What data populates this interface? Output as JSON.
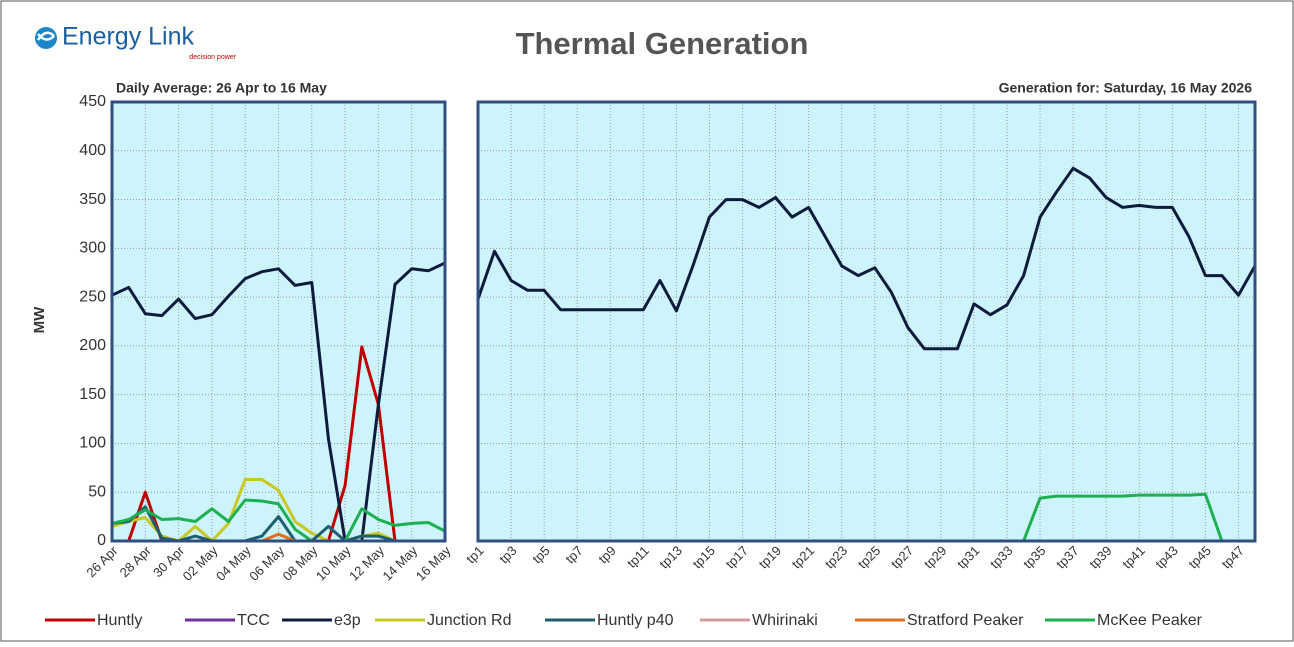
{
  "header": {
    "logo": "Energy Link",
    "tagline": "decision power",
    "title": "Thermal Generation"
  },
  "chart_data": [
    {
      "type": "line",
      "subtitle": "Daily Average: 26 Apr to 16 May",
      "y_label": "MW",
      "categories": [
        "26 Apr",
        null,
        "28 Apr",
        null,
        "30 Apr",
        null,
        "02 May",
        null,
        "04 May",
        null,
        "06 May",
        null,
        "08 May",
        null,
        "10 May",
        null,
        "12 May",
        null,
        "14 May",
        null,
        "16 May"
      ],
      "ylim": [
        0,
        450
      ],
      "yticks": [
        0,
        50,
        100,
        150,
        200,
        250,
        300,
        350,
        400,
        450
      ],
      "grid": true,
      "series": [
        {
          "name": "Huntly",
          "color": "#c00000",
          "values": [
            0,
            0,
            50,
            0,
            0,
            0,
            0,
            0,
            0,
            0,
            0,
            0,
            0,
            0,
            57,
            199,
            140,
            0,
            null,
            null,
            null
          ]
        },
        {
          "name": "TCC",
          "color": "#7030a0",
          "values": [
            0,
            0,
            0,
            0,
            0,
            0,
            0,
            0,
            0,
            0,
            0,
            0,
            0,
            0,
            0,
            0,
            0,
            0,
            0,
            0,
            0
          ]
        },
        {
          "name": "e3p",
          "color": "#0e1b3d",
          "values": [
            252,
            260,
            233,
            231,
            248,
            228,
            232,
            251,
            269,
            276,
            279,
            262,
            265,
            105,
            0,
            0,
            140,
            263,
            279,
            277,
            285
          ]
        },
        {
          "name": "Junction Rd",
          "color": "#c8c820",
          "values": [
            15,
            20,
            24,
            5,
            0,
            15,
            0,
            18,
            63,
            63,
            52,
            20,
            8,
            0,
            0,
            5,
            8,
            0,
            0,
            0,
            0
          ]
        },
        {
          "name": "Huntly p40",
          "color": "#1f5f6f",
          "values": [
            18,
            20,
            35,
            3,
            0,
            5,
            0,
            0,
            0,
            5,
            25,
            0,
            0,
            15,
            0,
            5,
            5,
            0,
            0,
            0,
            0
          ]
        },
        {
          "name": "Whirinaki",
          "color": "#d49a9a",
          "values": [
            0,
            0,
            0,
            0,
            0,
            0,
            0,
            0,
            0,
            0,
            0,
            0,
            0,
            0,
            0,
            0,
            0,
            0,
            0,
            0,
            0
          ]
        },
        {
          "name": "Stratford Peaker",
          "color": "#e07020",
          "values": [
            0,
            0,
            0,
            0,
            0,
            0,
            0,
            0,
            0,
            0,
            7,
            0,
            0,
            0,
            0,
            0,
            0,
            0,
            0,
            0,
            0
          ]
        },
        {
          "name": "McKee Peaker",
          "color": "#1cb050",
          "values": [
            18,
            22,
            32,
            22,
            23,
            20,
            33,
            20,
            42,
            41,
            38,
            12,
            0,
            0,
            0,
            33,
            22,
            16,
            18,
            19,
            10
          ]
        }
      ]
    },
    {
      "type": "line",
      "subtitle": "Generation for: Saturday, 16 May 2026",
      "categories": [
        "tp1",
        null,
        "tp3",
        null,
        "tp5",
        null,
        "tp7",
        null,
        "tp9",
        null,
        "tp11",
        null,
        "tp13",
        null,
        "tp15",
        null,
        "tp17",
        null,
        "tp19",
        null,
        "tp21",
        null,
        "tp23",
        null,
        "tp25",
        null,
        "tp27",
        null,
        "tp29",
        null,
        "tp31",
        null,
        "tp33",
        null,
        "tp35",
        null,
        "tp37",
        null,
        "tp39",
        null,
        "tp41",
        null,
        "tp43",
        null,
        "tp45",
        null,
        "tp47",
        null
      ],
      "ylim": [
        0,
        450
      ],
      "yticks": [
        0,
        50,
        100,
        150,
        200,
        250,
        300,
        350,
        400,
        450
      ],
      "grid": true,
      "series": [
        {
          "color": "#0e1b3d",
          "values": [
            248,
            297,
            267,
            257,
            257,
            237,
            237,
            237,
            237,
            237,
            237,
            267,
            236,
            282,
            332,
            350,
            350,
            342,
            352,
            332,
            342,
            312,
            282,
            272,
            280,
            255,
            219,
            197,
            197,
            197,
            243,
            232,
            242,
            272,
            332,
            358,
            382,
            372,
            352,
            342,
            344,
            342,
            342,
            312,
            272,
            272,
            252,
            282
          ]
        },
        {
          "color": "#1cb050",
          "values": [
            0,
            0,
            0,
            0,
            0,
            0,
            0,
            0,
            0,
            0,
            0,
            0,
            0,
            0,
            0,
            0,
            0,
            0,
            0,
            0,
            0,
            0,
            0,
            0,
            0,
            0,
            0,
            0,
            0,
            0,
            0,
            0,
            0,
            0,
            44,
            46,
            46,
            46,
            46,
            46,
            47,
            47,
            47,
            47,
            48,
            0,
            0,
            0
          ]
        }
      ]
    }
  ]
}
